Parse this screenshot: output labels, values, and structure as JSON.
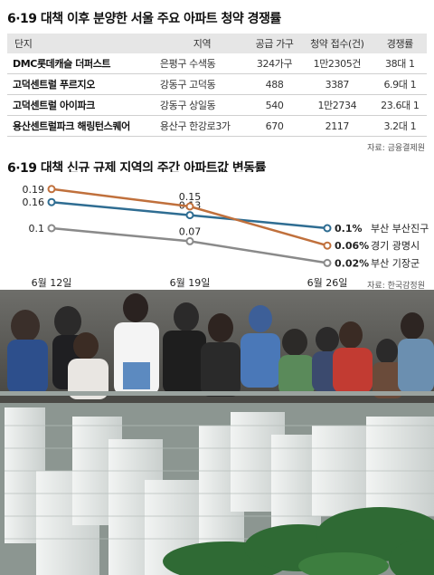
{
  "title1": "6·19 대책 이후 분양한 서울 주요 아파트 청약 경쟁률",
  "table": {
    "headers": [
      "단지",
      "지역",
      "공급 가구",
      "청약 접수(건)",
      "경쟁률"
    ],
    "rows": [
      [
        "DMC롯데캐슬 더퍼스트",
        "은평구 수색동",
        "324가구",
        "1만2305건",
        "38대 1"
      ],
      [
        "고덕센트럴 푸르지오",
        "강동구 고덕동",
        "488",
        "3387",
        "6.9대 1"
      ],
      [
        "고덕센트럴 아이파크",
        "강동구 상일동",
        "540",
        "1만2734",
        "23.6대 1"
      ],
      [
        "용산센트럴파크 해링턴스퀘어",
        "용산구 한강로3가",
        "670",
        "2117",
        "3.2대 1"
      ]
    ]
  },
  "source1": "자료: 금융결제원",
  "title2": "6·19 대책 신규 규제 지역의 주간 아파트값 변동률",
  "source2": "자료: 한국감정원",
  "chart_data": {
    "type": "line",
    "x": [
      "6월 12일",
      "6월 19일",
      "6월 26일"
    ],
    "y_unit": "%",
    "series": [
      {
        "name": "부산 부산진구",
        "values": [
          0.16,
          0.13,
          0.1
        ],
        "labels": [
          "0.16",
          "0.13",
          "0.1%"
        ],
        "color": "#2f6d92"
      },
      {
        "name": "경기 광명시",
        "values": [
          0.19,
          0.15,
          0.06
        ],
        "labels": [
          "0.19",
          "0.15",
          "0.06%"
        ],
        "color": "#c0703c"
      },
      {
        "name": "부산 기장군",
        "values": [
          0.1,
          0.07,
          0.02
        ],
        "labels": [
          "0.1",
          "0.07",
          "0.02%"
        ],
        "color": "#8a8a8a"
      }
    ],
    "ylim": [
      0,
      0.2
    ],
    "grid": false
  },
  "photo": {
    "caption": ""
  }
}
